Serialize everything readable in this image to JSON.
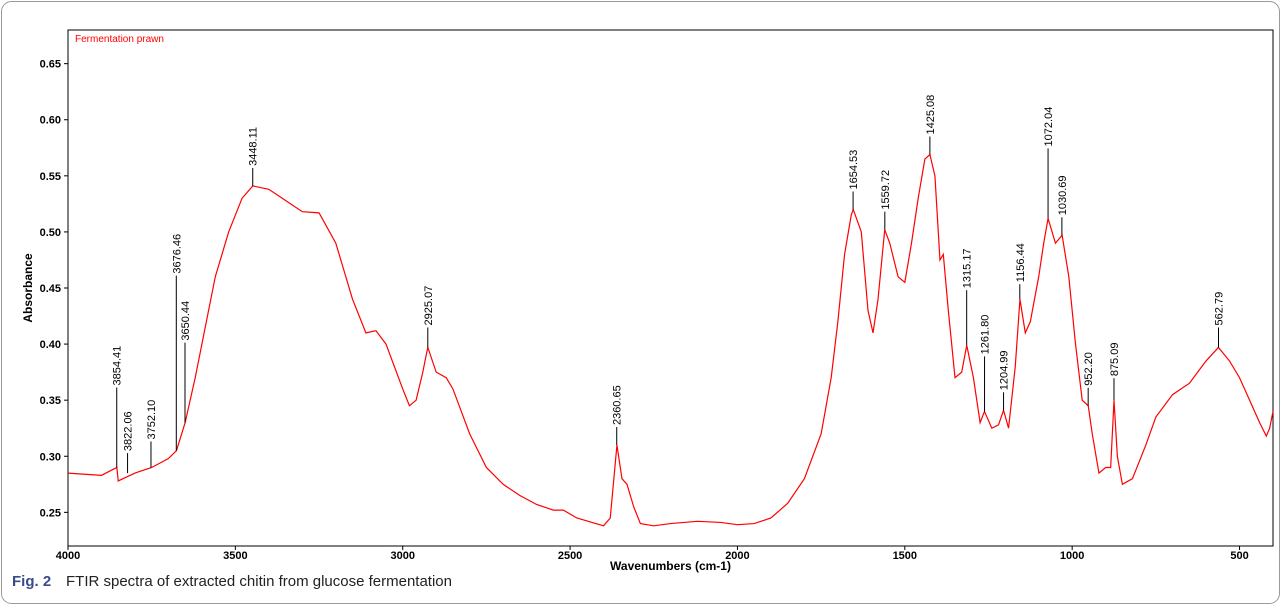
{
  "chart_data": {
    "type": "line",
    "legend_text_color": "#ff0000",
    "xlabel": "Wavenumbers (cm-1)",
    "ylabel": "Absorbance",
    "xlim": [
      4000,
      400
    ],
    "ylim": [
      0.22,
      0.68
    ],
    "xticks": [
      4000,
      3500,
      3000,
      2500,
      2000,
      1500,
      1000,
      500
    ],
    "yticks": [
      0.25,
      {
        "value": 0.3,
        "label": "0.30"
      },
      0.35,
      {
        "value": 0.4,
        "label": "0.40"
      },
      0.45,
      {
        "value": 0.5,
        "label": "0.50"
      },
      0.55,
      {
        "value": 0.6,
        "label": "0.60"
      },
      0.65
    ],
    "x": [
      4000,
      3900,
      3854,
      3850,
      3800,
      3750,
      3700,
      3676,
      3650,
      3620,
      3600,
      3560,
      3520,
      3480,
      3448,
      3400,
      3350,
      3300,
      3250,
      3200,
      3150,
      3110,
      3080,
      3050,
      3000,
      2980,
      2960,
      2940,
      2930,
      2925,
      2900,
      2870,
      2850,
      2800,
      2750,
      2700,
      2650,
      2600,
      2550,
      2520,
      2480,
      2400,
      2380,
      2360,
      2345,
      2330,
      2310,
      2290,
      2250,
      2200,
      2120,
      2050,
      2000,
      1950,
      1900,
      1850,
      1800,
      1750,
      1720,
      1700,
      1680,
      1660,
      1654,
      1630,
      1610,
      1595,
      1580,
      1560,
      1545,
      1520,
      1500,
      1480,
      1460,
      1440,
      1425,
      1410,
      1395,
      1385,
      1370,
      1350,
      1330,
      1315,
      1295,
      1275,
      1262,
      1240,
      1220,
      1205,
      1190,
      1170,
      1156,
      1140,
      1125,
      1100,
      1085,
      1072,
      1050,
      1030,
      1010,
      990,
      970,
      952,
      940,
      920,
      900,
      885,
      875,
      865,
      850,
      820,
      780,
      750,
      700,
      650,
      600,
      563,
      530,
      500,
      470,
      440,
      420,
      410,
      400
    ],
    "series": [
      {
        "name": "Fermentation prawn",
        "color": "#ff0000",
        "values": [
          0.285,
          0.283,
          0.29,
          0.278,
          0.285,
          0.29,
          0.298,
          0.305,
          0.33,
          0.37,
          0.4,
          0.46,
          0.5,
          0.53,
          0.541,
          0.538,
          0.528,
          0.518,
          0.517,
          0.49,
          0.44,
          0.41,
          0.412,
          0.4,
          0.36,
          0.345,
          0.35,
          0.375,
          0.39,
          0.397,
          0.375,
          0.37,
          0.36,
          0.32,
          0.29,
          0.275,
          0.265,
          0.257,
          0.252,
          0.252,
          0.245,
          0.238,
          0.245,
          0.31,
          0.28,
          0.275,
          0.255,
          0.24,
          0.238,
          0.24,
          0.242,
          0.241,
          0.239,
          0.24,
          0.245,
          0.258,
          0.28,
          0.32,
          0.37,
          0.42,
          0.48,
          0.515,
          0.52,
          0.5,
          0.43,
          0.41,
          0.44,
          0.502,
          0.49,
          0.46,
          0.455,
          0.49,
          0.53,
          0.565,
          0.569,
          0.55,
          0.475,
          0.48,
          0.43,
          0.37,
          0.375,
          0.399,
          0.37,
          0.33,
          0.34,
          0.325,
          0.328,
          0.341,
          0.325,
          0.38,
          0.44,
          0.41,
          0.42,
          0.46,
          0.49,
          0.512,
          0.49,
          0.497,
          0.46,
          0.4,
          0.35,
          0.345,
          0.32,
          0.285,
          0.29,
          0.29,
          0.35,
          0.3,
          0.275,
          0.28,
          0.31,
          0.335,
          0.355,
          0.365,
          0.385,
          0.397,
          0.385,
          0.37,
          0.35,
          0.33,
          0.318,
          0.325,
          0.34
        ]
      }
    ],
    "peaks": [
      {
        "x": 3854.41,
        "y": 0.29,
        "label": "3854.41"
      },
      {
        "x": 3822.06,
        "y": 0.285,
        "label": "3822.06"
      },
      {
        "x": 3752.1,
        "y": 0.29,
        "label": "3752.10"
      },
      {
        "x": 3676.46,
        "y": 0.305,
        "label": "3676.46"
      },
      {
        "x": 3650.44,
        "y": 0.33,
        "label": "3650.44"
      },
      {
        "x": 3448.11,
        "y": 0.541,
        "label": "3448.11"
      },
      {
        "x": 2925.07,
        "y": 0.397,
        "label": "2925.07"
      },
      {
        "x": 2360.65,
        "y": 0.31,
        "label": "2360.65"
      },
      {
        "x": 1654.53,
        "y": 0.52,
        "label": "1654.53"
      },
      {
        "x": 1559.72,
        "y": 0.502,
        "label": "1559.72"
      },
      {
        "x": 1425.08,
        "y": 0.569,
        "label": "1425.08"
      },
      {
        "x": 1315.17,
        "y": 0.399,
        "label": "1315.17"
      },
      {
        "x": 1261.8,
        "y": 0.34,
        "label": "1261.80"
      },
      {
        "x": 1204.99,
        "y": 0.341,
        "label": "1204.99"
      },
      {
        "x": 1156.44,
        "y": 0.44,
        "label": "1156.44"
      },
      {
        "x": 1072.04,
        "y": 0.512,
        "label": "1072.04"
      },
      {
        "x": 1030.69,
        "y": 0.497,
        "label": "1030.69"
      },
      {
        "x": 952.2,
        "y": 0.345,
        "label": "952.20"
      },
      {
        "x": 875.09,
        "y": 0.35,
        "label": "875.09"
      },
      {
        "x": 562.79,
        "y": 0.397,
        "label": "562.79"
      }
    ]
  },
  "caption": {
    "label": "Fig. 2",
    "text": "FTIR spectra of extracted chitin from glucose fermentation"
  }
}
